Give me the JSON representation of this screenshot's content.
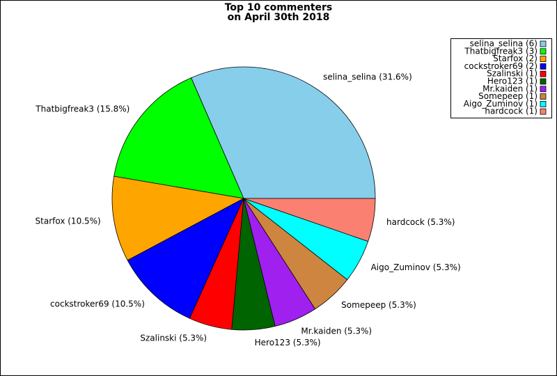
{
  "chart_data": {
    "type": "pie",
    "title": [
      "Top 10 commenters",
      "on April 30th 2018"
    ],
    "values": [
      31.6,
      15.8,
      10.5,
      10.5,
      5.3,
      5.3,
      5.3,
      5.3,
      5.3,
      5.3
    ],
    "value_labels": [
      "selina_selina (31.6%)",
      "Thatbigfreak3 (15.8%)",
      "Starfox (10.5%)",
      "cockstroker69 (10.5%)",
      "Szalinski (5.3%)",
      "Hero123 (5.3%)",
      "Mr.kaiden (5.3%)",
      "Somepeep (5.3%)",
      "Aigo_Zuminov (5.3%)",
      "hardcock (5.3%)"
    ],
    "legend_labels": [
      "selina_selina (6)",
      "Thatbigfreak3 (3)",
      "Starfox (2)",
      "cockstroker69 (2)",
      "Szalinski (1)",
      "Hero123 (1)",
      "Mr.kaiden (1)",
      "Somepeep (1)",
      "Aigo_Zuminov (1)",
      "hardcock (1)"
    ],
    "colors": [
      "#87ceeb",
      "#00ff00",
      "#ffa500",
      "#0000ff",
      "#ff0000",
      "#006400",
      "#a020f0",
      "#cd853f",
      "#00ffff",
      "#fa8072"
    ],
    "legend": "upper right"
  }
}
